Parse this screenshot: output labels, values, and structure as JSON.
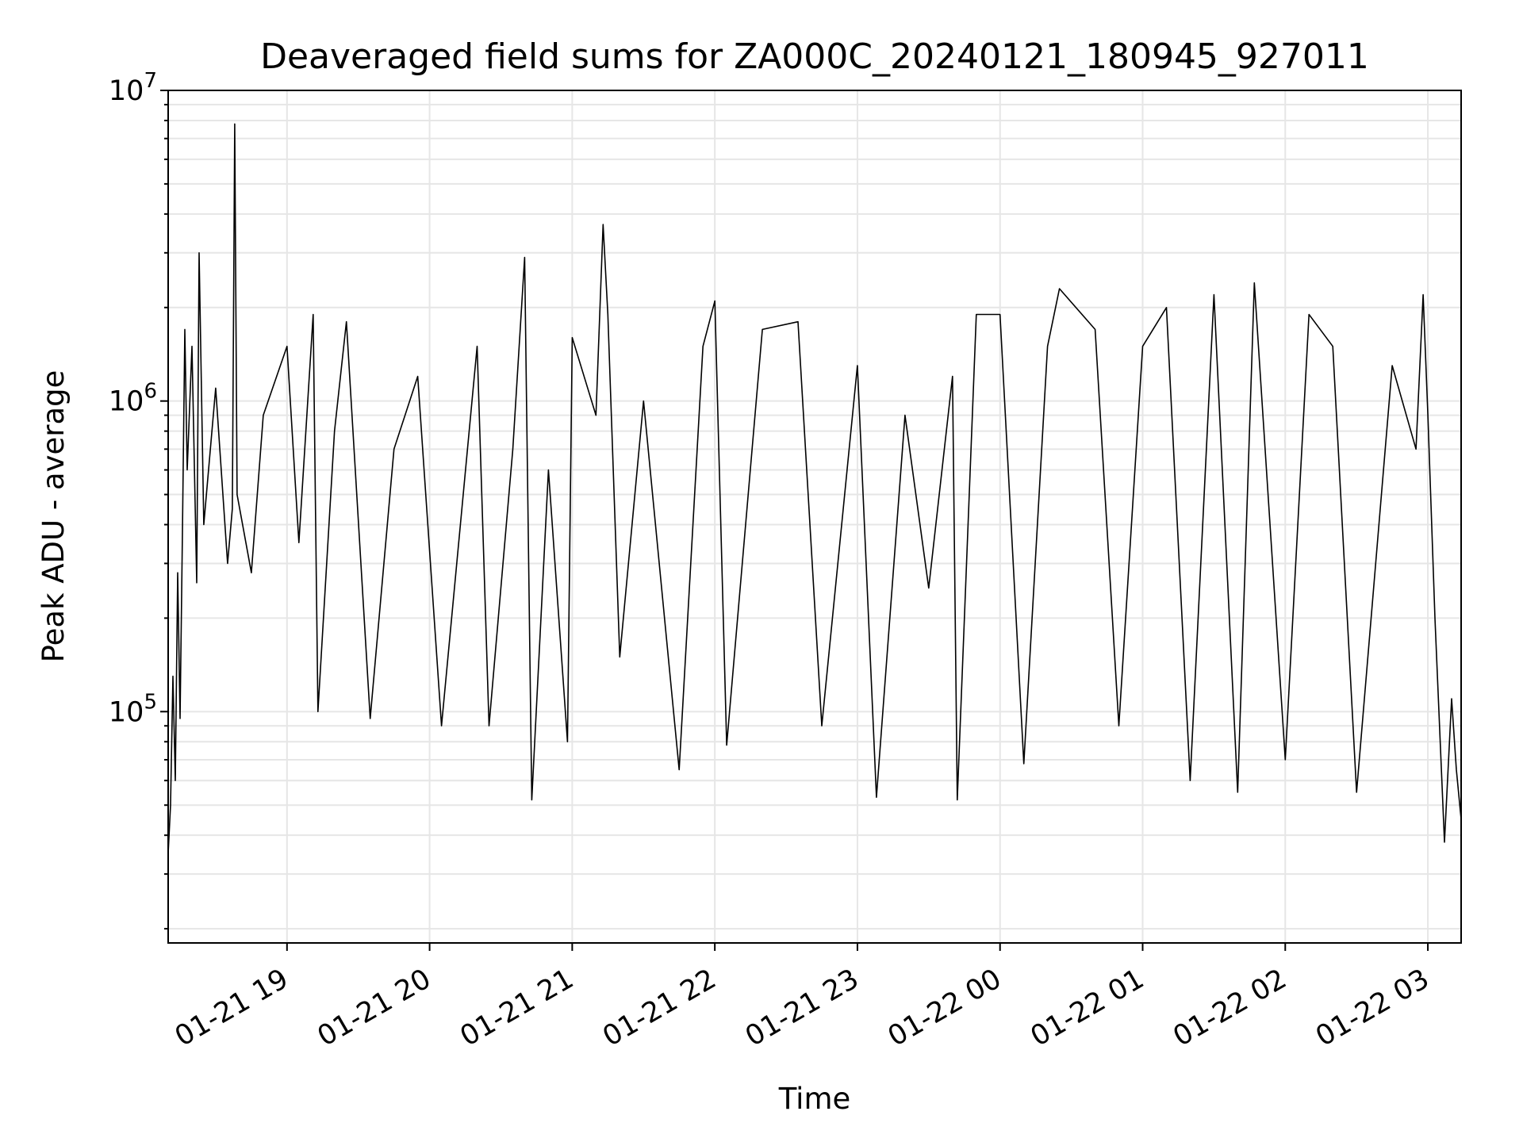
{
  "chart_data": {
    "type": "line",
    "title": "Deaveraged field sums for ZA000C_20240121_180945_927011",
    "xlabel": "Time",
    "ylabel": "Peak ADU - average",
    "yscale": "log",
    "ylim": [
      18000,
      10000000
    ],
    "xlim": [
      "2024-01-21 18:10",
      "2024-01-22 03:14"
    ],
    "x_ticks": [
      {
        "time": "2024-01-21 19:00",
        "label": "01-21 19"
      },
      {
        "time": "2024-01-21 20:00",
        "label": "01-21 20"
      },
      {
        "time": "2024-01-21 21:00",
        "label": "01-21 21"
      },
      {
        "time": "2024-01-21 22:00",
        "label": "01-21 22"
      },
      {
        "time": "2024-01-21 23:00",
        "label": "01-21 23"
      },
      {
        "time": "2024-01-22 00:00",
        "label": "01-22 00"
      },
      {
        "time": "2024-01-22 01:00",
        "label": "01-22 01"
      },
      {
        "time": "2024-01-22 02:00",
        "label": "01-22 02"
      },
      {
        "time": "2024-01-22 03:00",
        "label": "01-22 03"
      }
    ],
    "y_ticks": [
      {
        "value": 100000,
        "base": "10",
        "exp": "5"
      },
      {
        "value": 1000000,
        "base": "10",
        "exp": "6"
      },
      {
        "value": 10000000,
        "base": "10",
        "exp": "7"
      }
    ],
    "grid": true,
    "line_color": "#000000",
    "grid_color": "#e6e6e6",
    "series": [
      {
        "name": "",
        "points": [
          [
            "2024-01-21 18:10",
            35000
          ],
          [
            "2024-01-21 18:11",
            50000
          ],
          [
            "2024-01-21 18:12",
            130000
          ],
          [
            "2024-01-21 18:13",
            60000
          ],
          [
            "2024-01-21 18:14",
            280000
          ],
          [
            "2024-01-21 18:15",
            95000
          ],
          [
            "2024-01-21 18:16",
            380000
          ],
          [
            "2024-01-21 18:17",
            1700000
          ],
          [
            "2024-01-21 18:18",
            600000
          ],
          [
            "2024-01-21 18:20",
            1500000
          ],
          [
            "2024-01-21 18:22",
            260000
          ],
          [
            "2024-01-21 18:23",
            3000000
          ],
          [
            "2024-01-21 18:25",
            400000
          ],
          [
            "2024-01-21 18:30",
            1100000
          ],
          [
            "2024-01-21 18:35",
            300000
          ],
          [
            "2024-01-21 18:37",
            450000
          ],
          [
            "2024-01-21 18:38",
            7800000
          ],
          [
            "2024-01-21 18:39",
            500000
          ],
          [
            "2024-01-21 18:45",
            280000
          ],
          [
            "2024-01-21 18:50",
            900000
          ],
          [
            "2024-01-21 19:00",
            1500000
          ],
          [
            "2024-01-21 19:05",
            350000
          ],
          [
            "2024-01-21 19:11",
            1900000
          ],
          [
            "2024-01-21 19:13",
            100000
          ],
          [
            "2024-01-21 19:20",
            800000
          ],
          [
            "2024-01-21 19:25",
            1800000
          ],
          [
            "2024-01-21 19:35",
            95000
          ],
          [
            "2024-01-21 19:45",
            700000
          ],
          [
            "2024-01-21 19:55",
            1200000
          ],
          [
            "2024-01-21 20:05",
            90000
          ],
          [
            "2024-01-21 20:20",
            1500000
          ],
          [
            "2024-01-21 20:25",
            90000
          ],
          [
            "2024-01-21 20:35",
            700000
          ],
          [
            "2024-01-21 20:40",
            2900000
          ],
          [
            "2024-01-21 20:43",
            52000
          ],
          [
            "2024-01-21 20:50",
            600000
          ],
          [
            "2024-01-21 20:58",
            80000
          ],
          [
            "2024-01-21 21:00",
            1600000
          ],
          [
            "2024-01-21 21:10",
            900000
          ],
          [
            "2024-01-21 21:13",
            3700000
          ],
          [
            "2024-01-21 21:15",
            1900000
          ],
          [
            "2024-01-21 21:20",
            150000
          ],
          [
            "2024-01-21 21:30",
            1000000
          ],
          [
            "2024-01-21 21:45",
            65000
          ],
          [
            "2024-01-21 21:55",
            1500000
          ],
          [
            "2024-01-21 22:00",
            2100000
          ],
          [
            "2024-01-21 22:05",
            78000
          ],
          [
            "2024-01-21 22:20",
            1700000
          ],
          [
            "2024-01-21 22:35",
            1800000
          ],
          [
            "2024-01-21 22:45",
            90000
          ],
          [
            "2024-01-21 23:00",
            1300000
          ],
          [
            "2024-01-21 23:08",
            53000
          ],
          [
            "2024-01-21 23:20",
            900000
          ],
          [
            "2024-01-21 23:30",
            250000
          ],
          [
            "2024-01-21 23:40",
            1200000
          ],
          [
            "2024-01-21 23:42",
            52000
          ],
          [
            "2024-01-21 23:50",
            1900000
          ],
          [
            "2024-01-22 00:00",
            1900000
          ],
          [
            "2024-01-22 00:10",
            68000
          ],
          [
            "2024-01-22 00:20",
            1500000
          ],
          [
            "2024-01-22 00:25",
            2300000
          ],
          [
            "2024-01-22 00:40",
            1700000
          ],
          [
            "2024-01-22 00:50",
            90000
          ],
          [
            "2024-01-22 01:00",
            1500000
          ],
          [
            "2024-01-22 01:10",
            2000000
          ],
          [
            "2024-01-22 01:20",
            60000
          ],
          [
            "2024-01-22 01:30",
            2200000
          ],
          [
            "2024-01-22 01:40",
            55000
          ],
          [
            "2024-01-22 01:47",
            2400000
          ],
          [
            "2024-01-22 02:00",
            70000
          ],
          [
            "2024-01-22 02:10",
            1900000
          ],
          [
            "2024-01-22 02:20",
            1500000
          ],
          [
            "2024-01-22 02:30",
            55000
          ],
          [
            "2024-01-22 02:45",
            1300000
          ],
          [
            "2024-01-22 02:55",
            700000
          ],
          [
            "2024-01-22 02:58",
            2200000
          ],
          [
            "2024-01-22 03:00",
            900000
          ],
          [
            "2024-01-22 03:03",
            200000
          ],
          [
            "2024-01-22 03:07",
            38000
          ],
          [
            "2024-01-22 03:10",
            110000
          ],
          [
            "2024-01-22 03:12",
            65000
          ],
          [
            "2024-01-22 03:14",
            45000
          ]
        ]
      }
    ]
  }
}
